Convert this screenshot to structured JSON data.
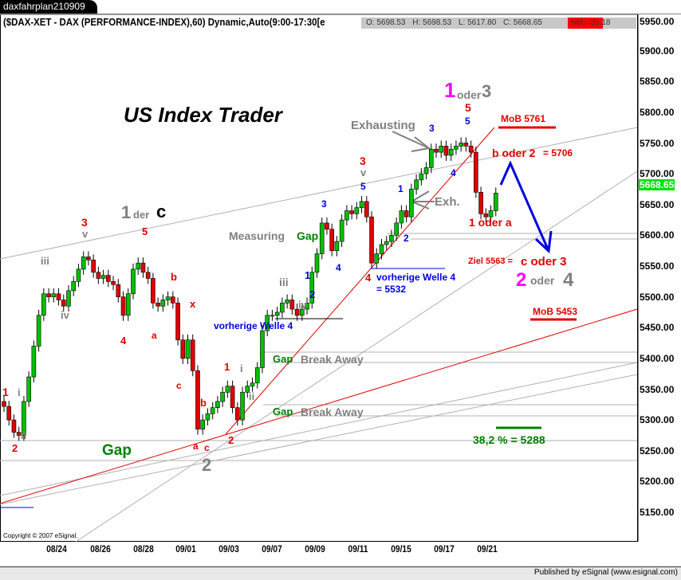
{
  "window": {
    "tab_title": "daxfahrplan210909"
  },
  "header": {
    "symbol_text": "($DAX-XET - DAX (PERFORMANCE-INDEX),60) Dynamic,Auto(9:00-17:30[e",
    "open": "O: 5698.53",
    "high": "H: 5698.53",
    "low": "L: 5617.80",
    "close": "C: 5668.65",
    "net": "Net: -35.18",
    "net_color": "#ff0000"
  },
  "footer": {
    "copyright": "Copyright © 2007 eSignal.",
    "published": "Published by eSignal (www.esignal.com)"
  },
  "chart_data": {
    "type": "candlestick",
    "title": "",
    "interval": "60",
    "x_tick_labels": [
      "08/24",
      "08/26",
      "08/28",
      "09/01",
      "09/03",
      "09/07",
      "09/09",
      "09/11",
      "09/15",
      "09/17",
      "09/21"
    ],
    "y_tick_labels": [
      "5950.00",
      "5900.00",
      "5850.00",
      "5800.00",
      "5750.00",
      "5700.00",
      "5650.00",
      "5600.00",
      "5550.00",
      "5500.00",
      "5450.00",
      "5400.00",
      "5350.00",
      "5300.00",
      "5250.00",
      "5200.00",
      "5150.00"
    ],
    "ylim": [
      5140,
      5960
    ],
    "last_price": "5668.65",
    "last_price_color": "#00e000",
    "up_color": "#00c000",
    "down_color": "#e00000",
    "closes": [
      5322,
      5300,
      5280,
      5275,
      5330,
      5370,
      5420,
      5470,
      5505,
      5500,
      5505,
      5495,
      5485,
      5510,
      5525,
      5545,
      5565,
      5560,
      5540,
      5530,
      5535,
      5525,
      5520,
      5500,
      5470,
      5505,
      5545,
      5555,
      5540,
      5530,
      5490,
      5485,
      5495,
      5500,
      5490,
      5430,
      5400,
      5430,
      5380,
      5285,
      5300,
      5310,
      5320,
      5330,
      5345,
      5355,
      5320,
      5300,
      5345,
      5355,
      5360,
      5385,
      5445,
      5470,
      5470,
      5475,
      5490,
      5495,
      5480,
      5470,
      5480,
      5490,
      5540,
      5570,
      5620,
      5610,
      5575,
      5590,
      5625,
      5640,
      5635,
      5645,
      5655,
      5630,
      5555,
      5570,
      5585,
      5590,
      5600,
      5620,
      5640,
      5630,
      5675,
      5690,
      5700,
      5710,
      5740,
      5735,
      5745,
      5730,
      5740,
      5745,
      5750,
      5745,
      5735,
      5670,
      5635,
      5630,
      5640,
      5668.65
    ],
    "annotations": [
      {
        "text": "US Index Trader",
        "color": "#000000"
      },
      {
        "text": "1",
        "color": "#808080"
      },
      {
        "text": "der",
        "color": "#808080"
      },
      {
        "text": "c",
        "color": "#000000"
      },
      {
        "text": "1",
        "color": "#e00000"
      },
      {
        "text": "i",
        "color": "#808080"
      },
      {
        "text": "2",
        "color": "#e00000"
      },
      {
        "text": "ii",
        "color": "#808080"
      },
      {
        "text": "iii",
        "color": "#808080"
      },
      {
        "text": "iv",
        "color": "#808080"
      },
      {
        "text": "3",
        "color": "#e00000"
      },
      {
        "text": "v",
        "color": "#808080"
      },
      {
        "text": "5",
        "color": "#e00000"
      },
      {
        "text": "4",
        "color": "#e00000"
      },
      {
        "text": "b",
        "color": "#e00000"
      },
      {
        "text": "a",
        "color": "#e00000"
      },
      {
        "text": "x",
        "color": "#e00000"
      },
      {
        "text": "c",
        "color": "#e00000"
      },
      {
        "text": "b",
        "color": "#e00000"
      },
      {
        "text": "a",
        "color": "#e00000"
      },
      {
        "text": "c",
        "color": "#e00000"
      },
      {
        "text": "2",
        "color": "#808080"
      },
      {
        "text": "1",
        "color": "#e00000"
      },
      {
        "text": "i",
        "color": "#808080"
      },
      {
        "text": "ii",
        "color": "#808080"
      },
      {
        "text": "2",
        "color": "#e00000"
      },
      {
        "text": "Gap",
        "color": "#008000"
      },
      {
        "text": "Measuring",
        "color": "#808080"
      },
      {
        "text": "Gap",
        "color": "#008000"
      },
      {
        "text": "iii",
        "color": "#808080"
      },
      {
        "text": "iv",
        "color": "#808080"
      },
      {
        "text": "1",
        "color": "#0000e0"
      },
      {
        "text": "2",
        "color": "#0000e0"
      },
      {
        "text": "3",
        "color": "#0000e0"
      },
      {
        "text": "4",
        "color": "#0000e0"
      },
      {
        "text": "vorherige  Welle 4",
        "color": "#0000e0"
      },
      {
        "text": "Gap",
        "color": "#008000"
      },
      {
        "text": "Break Away",
        "color": "#808080"
      },
      {
        "text": "Gap",
        "color": "#008000"
      },
      {
        "text": "Break Away",
        "color": "#808080"
      },
      {
        "text": "3",
        "color": "#e00000"
      },
      {
        "text": "v",
        "color": "#808080"
      },
      {
        "text": "5",
        "color": "#0000e0"
      },
      {
        "text": "4",
        "color": "#e00000"
      },
      {
        "text": "vorherige  Welle 4",
        "color": "#0000e0"
      },
      {
        "text": "= 5532",
        "color": "#0000e0"
      },
      {
        "text": "1",
        "color": "#0000e0"
      },
      {
        "text": "2",
        "color": "#0000e0"
      },
      {
        "text": "Exh.",
        "color": "#808080"
      },
      {
        "text": "Exhausting",
        "color": "#808080"
      },
      {
        "text": "3",
        "color": "#0000e0"
      },
      {
        "text": "4",
        "color": "#0000e0"
      },
      {
        "text": "5",
        "color": "#0000e0"
      },
      {
        "text": "5",
        "color": "#e00000"
      },
      {
        "text": "1",
        "color": "#ff00ff"
      },
      {
        "text": "oder",
        "color": "#808080"
      },
      {
        "text": "3",
        "color": "#808080"
      },
      {
        "text": "MoB 5761",
        "color": "#e00000"
      },
      {
        "text": "b oder 2",
        "color": "#e00000"
      },
      {
        "text": "= 5706",
        "color": "#e00000"
      },
      {
        "text": "1 oder a",
        "color": "#e00000"
      },
      {
        "text": "Ziel 5563 =",
        "color": "#e00000"
      },
      {
        "text": "c oder 3",
        "color": "#e00000"
      },
      {
        "text": "2",
        "color": "#ff00ff"
      },
      {
        "text": "oder",
        "color": "#808080"
      },
      {
        "text": "4",
        "color": "#808080"
      },
      {
        "text": "MoB 5453",
        "color": "#e00000"
      },
      {
        "text": "38,2 % = 5288",
        "color": "#008000"
      }
    ]
  }
}
